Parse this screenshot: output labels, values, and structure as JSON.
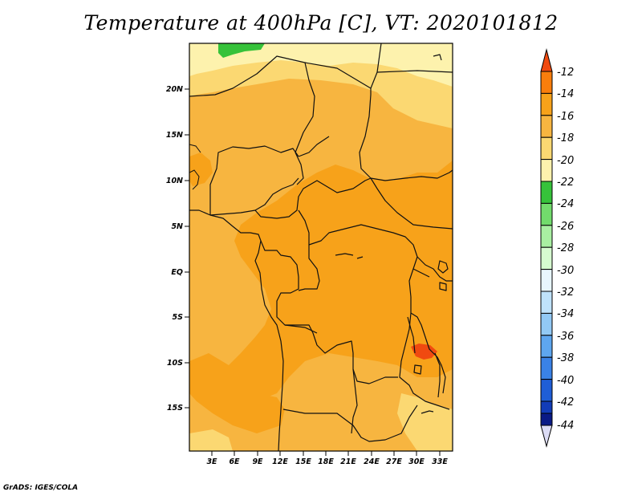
{
  "title": "Temperature at 400hPa [C], VT: 2020101812",
  "credit": "GrADS: IGES/COLA",
  "map": {
    "variable": "Temperature",
    "level": "400hPa",
    "units": "C",
    "valid_time": "2020101812",
    "lat_ticks": [
      "20N",
      "15N",
      "10N",
      "5N",
      "EQ",
      "5S",
      "10S",
      "15S"
    ],
    "lon_ticks": [
      "3E",
      "6E",
      "9E",
      "12E",
      "15E",
      "18E",
      "21E",
      "24E",
      "27E",
      "30E",
      "33E"
    ]
  },
  "colorbar": {
    "labels": [
      "-12",
      "-14",
      "-16",
      "-18",
      "-20",
      "-22",
      "-24",
      "-26",
      "-28",
      "-30",
      "-32",
      "-34",
      "-36",
      "-38",
      "-40",
      "-42",
      "-44"
    ],
    "colors": {
      "above_-12": "#f04a10",
      "-14_-12": "#f97e0c",
      "-16_-14": "#f7a21a",
      "-18_-16": "#f7b540",
      "-20_-18": "#fbd872",
      "-22_-20": "#fdf2ad",
      "-24_-22": "#36c23a",
      "-26_-24": "#72db6c",
      "-28_-26": "#a9efa2",
      "-30_-28": "#d6fbd0",
      "-32_-30": "#e8f6fe",
      "-34_-32": "#bfe2fb",
      "-36_-34": "#92c9f5",
      "-38_-36": "#5ea6ef",
      "-40_-38": "#3a82e6",
      "-42_-40": "#1f5ed6",
      "-44_-42": "#123cb8",
      "below_-44_edge": "#0a1a86",
      "below_-44": "#dcdcf5"
    }
  }
}
